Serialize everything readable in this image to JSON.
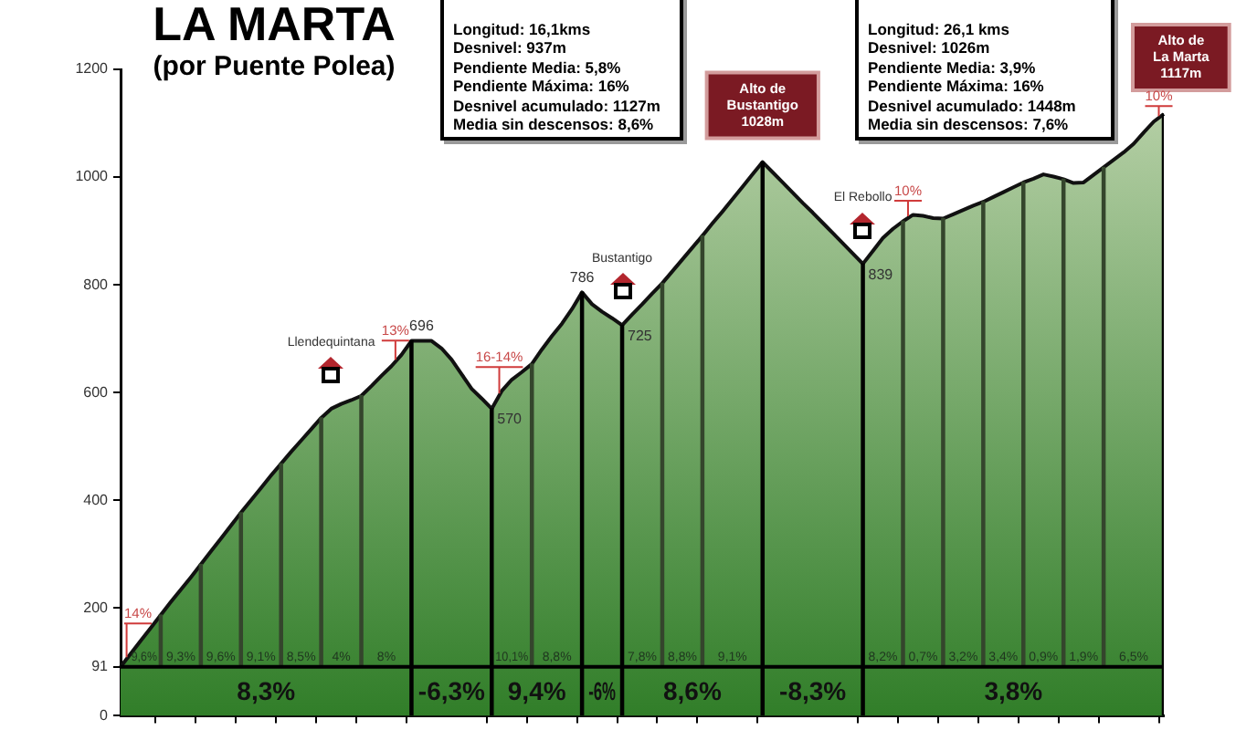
{
  "chart_data": {
    "type": "area",
    "title": "LA MARTA",
    "subtitle": "(por Puente Polea)",
    "categories": [
      null,
      null,
      null,
      null,
      null,
      null,
      null,
      null,
      null,
      null,
      null,
      null,
      null,
      null,
      null,
      null,
      null,
      null,
      null,
      null,
      null,
      null,
      null,
      null,
      null,
      null,
      null,
      null,
      null,
      null,
      null,
      null,
      null,
      null,
      null,
      null,
      null,
      null,
      null,
      null,
      null,
      null,
      null,
      null,
      null,
      null,
      null,
      null,
      null,
      null,
      null,
      null,
      null,
      null,
      null,
      null,
      null,
      null,
      null,
      null,
      null,
      null,
      null,
      null,
      null,
      null,
      null,
      null,
      null,
      null,
      null,
      null,
      null,
      null,
      null,
      null,
      null,
      null,
      null,
      null,
      null,
      null,
      null,
      null,
      null,
      null,
      null,
      null,
      null,
      null,
      null,
      null,
      null,
      null,
      null,
      null,
      null,
      null,
      null,
      null,
      null,
      null,
      null,
      null,
      null
    ],
    "ylim": [
      0,
      1200
    ],
    "yticks": [
      0,
      91,
      200,
      400,
      600,
      800,
      1000,
      1200
    ],
    "series": [
      {
        "color": "#7aa85a",
        "values": [
          91,
          115,
          139,
          163,
          187,
          211,
          234,
          257,
          281,
          305,
          329,
          353,
          377,
          400,
          423,
          446,
          468,
          490,
          511,
          532,
          553,
          570,
          579,
          586,
          594,
          612,
          631,
          649,
          670,
          696,
          696,
          696,
          682,
          661,
          634,
          607,
          589,
          570,
          603,
          624,
          638,
          653,
          680,
          705,
          728,
          755,
          786,
          764,
          750,
          738,
          725,
          745,
          764,
          784,
          803,
          825,
          847,
          869,
          891,
          914,
          936,
          959,
          982,
          1005,
          1028,
          1009,
          990,
          971,
          952,
          934,
          915,
          896,
          877,
          858,
          839,
          863,
          887,
          904,
          918,
          930,
          928,
          924,
          923,
          931,
          939,
          947,
          954,
          963,
          972,
          981,
          990,
          997,
          1005,
          1001,
          996,
          989,
          990,
          1004,
          1018,
          1032,
          1046,
          1062,
          1083,
          1103,
          1117
        ],
        "value_labels": [
          null,
          null,
          null,
          null,
          null,
          null,
          null,
          null,
          null,
          null,
          null,
          null,
          null,
          null,
          null,
          null,
          null,
          null,
          null,
          null,
          null,
          null,
          null,
          null,
          null,
          null,
          null,
          null,
          null,
          null,
          "696",
          null,
          null,
          null,
          null,
          null,
          null,
          "570",
          null,
          null,
          null,
          null,
          null,
          null,
          null,
          null,
          "786",
          null,
          null,
          null,
          "725",
          null,
          null,
          null,
          null,
          null,
          null,
          null,
          null,
          null,
          null,
          null,
          null,
          null,
          null,
          null,
          null,
          null,
          null,
          null,
          null,
          null,
          null,
          null,
          "839",
          null,
          null,
          null,
          null,
          null,
          null,
          null,
          null,
          null,
          null,
          null,
          null,
          null,
          null,
          null,
          null,
          null,
          null,
          null,
          null,
          null,
          null,
          null,
          null,
          null,
          null,
          null,
          null,
          null,
          null
        ]
      },
      {
        "type": "bar",
        "color": "#34452c",
        "values": [
          null,
          null,
          null,
          null,
          96,
          null,
          null,
          null,
          190,
          null,
          null,
          null,
          286,
          null,
          null,
          null,
          377,
          null,
          null,
          null,
          462,
          null,
          null,
          null,
          503,
          null,
          null,
          null,
          null,
          null,
          null,
          null,
          null,
          null,
          null,
          null,
          null,
          null,
          null,
          null,
          null,
          562,
          null,
          null,
          null,
          null,
          null,
          null,
          null,
          null,
          null,
          null,
          null,
          null,
          712,
          null,
          null,
          null,
          800,
          null,
          null,
          null,
          null,
          null,
          null,
          null,
          null,
          null,
          null,
          null,
          null,
          null,
          null,
          null,
          null,
          null,
          null,
          null,
          827,
          null,
          null,
          null,
          832,
          null,
          null,
          null,
          863,
          null,
          null,
          null,
          899,
          null,
          null,
          null,
          905,
          null,
          null,
          null,
          927,
          null,
          null,
          null,
          null,
          null,
          null
        ],
        "base": [
          null,
          null,
          null,
          null,
          91,
          null,
          null,
          null,
          91,
          null,
          null,
          null,
          91,
          null,
          null,
          null,
          91,
          null,
          null,
          null,
          91,
          null,
          null,
          null,
          91,
          null,
          null,
          null,
          null,
          null,
          null,
          null,
          null,
          null,
          null,
          null,
          null,
          null,
          null,
          null,
          null,
          91,
          null,
          null,
          null,
          null,
          null,
          null,
          null,
          null,
          null,
          null,
          null,
          null,
          91,
          null,
          null,
          null,
          91,
          null,
          null,
          null,
          null,
          null,
          null,
          null,
          null,
          null,
          null,
          null,
          null,
          null,
          null,
          null,
          null,
          null,
          null,
          null,
          91,
          null,
          null,
          null,
          91,
          null,
          null,
          null,
          91,
          null,
          null,
          null,
          91,
          null,
          null,
          null,
          91,
          null,
          null,
          null,
          91,
          null,
          null,
          null,
          null,
          null,
          null
        ]
      },
      {
        "type": "bar",
        "color": "#000000",
        "values": [
          null,
          null,
          null,
          null,
          null,
          null,
          null,
          null,
          null,
          null,
          null,
          null,
          null,
          null,
          null,
          null,
          null,
          null,
          null,
          null,
          null,
          null,
          null,
          null,
          null,
          null,
          null,
          null,
          null,
          696,
          null,
          null,
          null,
          null,
          null,
          null,
          null,
          570,
          null,
          null,
          null,
          null,
          null,
          null,
          null,
          null,
          786,
          null,
          null,
          null,
          725,
          null,
          null,
          null,
          null,
          null,
          null,
          null,
          null,
          null,
          null,
          null,
          null,
          null,
          1028,
          null,
          null,
          null,
          null,
          null,
          null,
          null,
          null,
          null,
          839,
          null,
          null,
          null,
          null,
          null,
          null,
          null,
          null,
          null,
          null,
          null,
          null,
          null,
          null,
          null,
          null,
          null,
          null,
          null,
          null,
          null,
          null,
          null,
          null,
          null,
          null,
          null,
          null,
          null,
          1117
        ]
      }
    ],
    "ref_lines": [
      {
        "axis": "y",
        "value": 91,
        "color": "#000000"
      }
    ],
    "annotations": [
      "Longitud: 16,1kms\nDesnivel: 937m\nPendiente Media: 5,8%\nPendiente Máxima: 16%\nDesnivel acumulado: 1127m\nMedia sin descensos: 8,6%",
      "Longitud: 26,1 kms\nDesnivel: 1026m\nPendiente Media: 3,9%\nPendiente Máxima: 16%\nDesnivel acumulado: 1448m\nMedia sin descensos: 7,6%",
      "Alto de\nBustantigo\n1028m",
      "Alto de\nLa Marta\n1117m",
      "Llendequintana",
      "Bustantigo",
      "El Rebollo",
      "14%",
      "13%",
      "16-14%",
      "10%",
      "10%",
      "8,3%",
      "-6,3%",
      "9,4%",
      "-6%",
      "8,6%",
      "-8,3%",
      "3,8%",
      "9,6%",
      "9,3%",
      "9,6%",
      "9,1%",
      "8,5%",
      "4%",
      "8%",
      "10,1%",
      "8,8%",
      "7,8%",
      "8,8%",
      "9,1%",
      "8,2%",
      "0,7%",
      "3,2%",
      "3,4%",
      "0,9%",
      "1,9%",
      "6,5%"
    ]
  }
}
